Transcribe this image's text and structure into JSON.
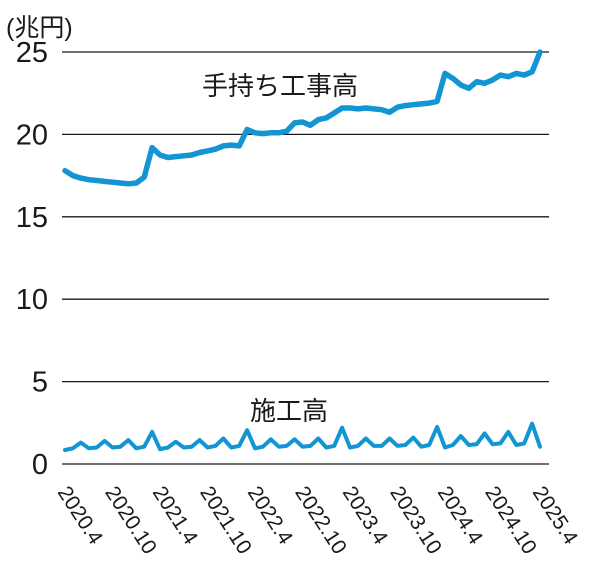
{
  "chart_data": {
    "type": "line",
    "unit_label": "(兆円)",
    "y_ticks": [
      0,
      5,
      10,
      15,
      20,
      25
    ],
    "ylim": [
      0,
      25
    ],
    "grid": "horizontal",
    "x_tick_labels": [
      "2020.4",
      "2020.10",
      "2021.4",
      "2021.10",
      "2022.4",
      "2022.10",
      "2023.4",
      "2023.10",
      "2024.4",
      "2024.10",
      "2025.4"
    ],
    "x_months_per_tick": 6,
    "x_frequency": "monthly",
    "line_color": "#1295d2",
    "axis_color": "#1a1a1a",
    "series": [
      {
        "name": "手持ち工事高",
        "values": [
          17.8,
          17.5,
          17.35,
          17.25,
          17.2,
          17.15,
          17.1,
          17.05,
          17.0,
          17.05,
          17.4,
          19.2,
          18.75,
          18.6,
          18.65,
          18.7,
          18.75,
          18.9,
          19.0,
          19.1,
          19.3,
          19.35,
          19.3,
          20.3,
          20.1,
          20.05,
          20.1,
          20.1,
          20.2,
          20.7,
          20.75,
          20.55,
          20.9,
          21.0,
          21.3,
          21.6,
          21.6,
          21.55,
          21.6,
          21.55,
          21.5,
          21.35,
          21.65,
          21.75,
          21.8,
          21.85,
          21.9,
          22.0,
          23.7,
          23.4,
          23.0,
          22.8,
          23.2,
          23.1,
          23.3,
          23.6,
          23.5,
          23.7,
          23.6,
          23.8,
          25.0
        ]
      },
      {
        "name": "施工高",
        "values": [
          0.85,
          0.95,
          1.3,
          0.95,
          1.0,
          1.4,
          1.0,
          1.05,
          1.45,
          0.95,
          1.05,
          1.95,
          0.9,
          1.0,
          1.35,
          1.0,
          1.05,
          1.45,
          1.0,
          1.1,
          1.55,
          1.0,
          1.1,
          2.05,
          0.95,
          1.05,
          1.5,
          1.05,
          1.1,
          1.5,
          1.05,
          1.1,
          1.55,
          1.0,
          1.1,
          2.2,
          1.0,
          1.1,
          1.55,
          1.1,
          1.1,
          1.55,
          1.1,
          1.15,
          1.6,
          1.05,
          1.15,
          2.25,
          1.0,
          1.15,
          1.7,
          1.15,
          1.2,
          1.85,
          1.2,
          1.25,
          1.95,
          1.15,
          1.25,
          2.45,
          1.05
        ]
      }
    ]
  }
}
